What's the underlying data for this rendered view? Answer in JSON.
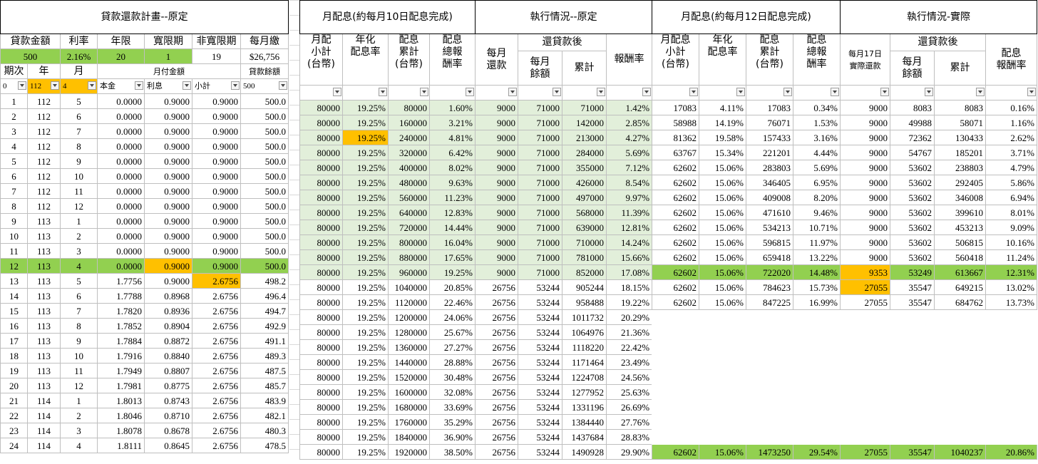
{
  "colors": {
    "green": "#92d050",
    "light_green": "#e2efda",
    "orange": "#ffc000"
  },
  "plan": {
    "title": "貸款還款計畫--原定",
    "param_headers": [
      "貸款金額",
      "利率",
      "年限",
      "寬限期",
      "非寬限期",
      "每月繳"
    ],
    "param_values": [
      "500",
      "2.16%",
      "20",
      "1",
      "19",
      "$26,756"
    ],
    "col_headers": {
      "period": "期次",
      "year": "年",
      "month": "月",
      "monthly_pay": "月付金額",
      "balance": "貸款餘額"
    },
    "filter_row": [
      "0",
      "112",
      "4",
      "本金",
      "利息",
      "小計",
      "500"
    ],
    "rows": [
      [
        "1",
        "112",
        "5",
        "0.0000",
        "0.9000",
        "0.9000",
        "500.0"
      ],
      [
        "2",
        "112",
        "6",
        "0.0000",
        "0.9000",
        "0.9000",
        "500.0"
      ],
      [
        "3",
        "112",
        "7",
        "0.0000",
        "0.9000",
        "0.9000",
        "500.0"
      ],
      [
        "4",
        "112",
        "8",
        "0.0000",
        "0.9000",
        "0.9000",
        "500.0"
      ],
      [
        "5",
        "112",
        "9",
        "0.0000",
        "0.9000",
        "0.9000",
        "500.0"
      ],
      [
        "6",
        "112",
        "10",
        "0.0000",
        "0.9000",
        "0.9000",
        "500.0"
      ],
      [
        "7",
        "112",
        "11",
        "0.0000",
        "0.9000",
        "0.9000",
        "500.0"
      ],
      [
        "8",
        "112",
        "12",
        "0.0000",
        "0.9000",
        "0.9000",
        "500.0"
      ],
      [
        "9",
        "113",
        "1",
        "0.0000",
        "0.9000",
        "0.9000",
        "500.0"
      ],
      [
        "10",
        "113",
        "2",
        "0.0000",
        "0.9000",
        "0.9000",
        "500.0"
      ],
      [
        "11",
        "113",
        "3",
        "0.0000",
        "0.9000",
        "0.9000",
        "500.0"
      ],
      [
        "12",
        "113",
        "4",
        "0.0000",
        "0.9000",
        "0.9000",
        "500.0"
      ],
      [
        "13",
        "113",
        "5",
        "1.7756",
        "0.9000",
        "2.6756",
        "498.2"
      ],
      [
        "14",
        "113",
        "6",
        "1.7788",
        "0.8968",
        "2.6756",
        "496.4"
      ],
      [
        "15",
        "113",
        "7",
        "1.7820",
        "0.8936",
        "2.6756",
        "494.7"
      ],
      [
        "16",
        "113",
        "8",
        "1.7852",
        "0.8904",
        "2.6756",
        "492.9"
      ],
      [
        "17",
        "113",
        "9",
        "1.7884",
        "0.8872",
        "2.6756",
        "491.1"
      ],
      [
        "18",
        "113",
        "10",
        "1.7916",
        "0.8840",
        "2.6756",
        "489.3"
      ],
      [
        "19",
        "113",
        "11",
        "1.7949",
        "0.8807",
        "2.6756",
        "487.5"
      ],
      [
        "20",
        "113",
        "12",
        "1.7981",
        "0.8775",
        "2.6756",
        "485.7"
      ],
      [
        "21",
        "114",
        "1",
        "1.8013",
        "0.8743",
        "2.6756",
        "483.9"
      ],
      [
        "22",
        "114",
        "2",
        "1.8046",
        "0.8710",
        "2.6756",
        "482.1"
      ],
      [
        "23",
        "114",
        "3",
        "1.8078",
        "0.8678",
        "2.6756",
        "480.3"
      ],
      [
        "24",
        "114",
        "4",
        "1.8111",
        "0.8645",
        "2.6756",
        "478.5"
      ]
    ]
  },
  "dividend_plan": {
    "title": "月配息(約每月10日配息完成)",
    "headers": [
      "月配\n小計\n(台幣)",
      "年化\n配息率",
      "配息\n累計\n(台幣)",
      "配息\n總報\n酬率"
    ],
    "rows": [
      [
        "80000",
        "19.25%",
        "80000",
        "1.60%"
      ],
      [
        "80000",
        "19.25%",
        "160000",
        "3.21%"
      ],
      [
        "80000",
        "19.25%",
        "240000",
        "4.81%"
      ],
      [
        "80000",
        "19.25%",
        "320000",
        "6.42%"
      ],
      [
        "80000",
        "19.25%",
        "400000",
        "8.02%"
      ],
      [
        "80000",
        "19.25%",
        "480000",
        "9.63%"
      ],
      [
        "80000",
        "19.25%",
        "560000",
        "11.23%"
      ],
      [
        "80000",
        "19.25%",
        "640000",
        "12.83%"
      ],
      [
        "80000",
        "19.25%",
        "720000",
        "14.44%"
      ],
      [
        "80000",
        "19.25%",
        "800000",
        "16.04%"
      ],
      [
        "80000",
        "19.25%",
        "880000",
        "17.65%"
      ],
      [
        "80000",
        "19.25%",
        "960000",
        "19.25%"
      ],
      [
        "80000",
        "19.25%",
        "1040000",
        "20.85%"
      ],
      [
        "80000",
        "19.25%",
        "1120000",
        "22.46%"
      ],
      [
        "80000",
        "19.25%",
        "1200000",
        "24.06%"
      ],
      [
        "80000",
        "19.25%",
        "1280000",
        "25.67%"
      ],
      [
        "80000",
        "19.25%",
        "1360000",
        "27.27%"
      ],
      [
        "80000",
        "19.25%",
        "1440000",
        "28.88%"
      ],
      [
        "80000",
        "19.25%",
        "1520000",
        "30.48%"
      ],
      [
        "80000",
        "19.25%",
        "1600000",
        "32.08%"
      ],
      [
        "80000",
        "19.25%",
        "1680000",
        "33.69%"
      ],
      [
        "80000",
        "19.25%",
        "1760000",
        "35.29%"
      ],
      [
        "80000",
        "19.25%",
        "1840000",
        "36.90%"
      ],
      [
        "80000",
        "19.25%",
        "1920000",
        "38.50%"
      ]
    ]
  },
  "exec_plan": {
    "title": "執行情況--原定",
    "headers": {
      "monthly": "每月\n還款",
      "after": "還貸款後",
      "remain": "每月\n餘額",
      "cum": "累計",
      "ret": "報酬率"
    },
    "rows": [
      [
        "9000",
        "71000",
        "71000",
        "1.42%"
      ],
      [
        "9000",
        "71000",
        "142000",
        "2.85%"
      ],
      [
        "9000",
        "71000",
        "213000",
        "4.27%"
      ],
      [
        "9000",
        "71000",
        "284000",
        "5.69%"
      ],
      [
        "9000",
        "71000",
        "355000",
        "7.12%"
      ],
      [
        "9000",
        "71000",
        "426000",
        "8.54%"
      ],
      [
        "9000",
        "71000",
        "497000",
        "9.97%"
      ],
      [
        "9000",
        "71000",
        "568000",
        "11.39%"
      ],
      [
        "9000",
        "71000",
        "639000",
        "12.81%"
      ],
      [
        "9000",
        "71000",
        "710000",
        "14.24%"
      ],
      [
        "9000",
        "71000",
        "781000",
        "15.66%"
      ],
      [
        "9000",
        "71000",
        "852000",
        "17.08%"
      ],
      [
        "26756",
        "53244",
        "905244",
        "18.15%"
      ],
      [
        "26756",
        "53244",
        "958488",
        "19.22%"
      ],
      [
        "26756",
        "53244",
        "1011732",
        "20.29%"
      ],
      [
        "26756",
        "53244",
        "1064976",
        "21.36%"
      ],
      [
        "26756",
        "53244",
        "1118220",
        "22.42%"
      ],
      [
        "26756",
        "53244",
        "1171464",
        "23.49%"
      ],
      [
        "26756",
        "53244",
        "1224708",
        "24.56%"
      ],
      [
        "26756",
        "53244",
        "1277952",
        "25.63%"
      ],
      [
        "26756",
        "53244",
        "1331196",
        "26.69%"
      ],
      [
        "26756",
        "53244",
        "1384440",
        "27.76%"
      ],
      [
        "26756",
        "53244",
        "1437684",
        "28.83%"
      ],
      [
        "26756",
        "53244",
        "1490928",
        "29.90%"
      ]
    ]
  },
  "dividend_actual": {
    "title": "月配息(約每月12日配息完成)",
    "headers": [
      "月配息\n小計\n(台幣)",
      "年化\n配息率",
      "配息\n累計\n(台幣)",
      "配息\n總報\n酬率"
    ],
    "rows": [
      [
        "17083",
        "4.11%",
        "17083",
        "0.34%"
      ],
      [
        "58988",
        "14.19%",
        "76071",
        "1.53%"
      ],
      [
        "81362",
        "19.58%",
        "157433",
        "3.16%"
      ],
      [
        "63767",
        "15.34%",
        "221201",
        "4.44%"
      ],
      [
        "62602",
        "15.06%",
        "283803",
        "5.69%"
      ],
      [
        "62602",
        "15.06%",
        "346405",
        "6.95%"
      ],
      [
        "62602",
        "15.06%",
        "409008",
        "8.20%"
      ],
      [
        "62602",
        "15.06%",
        "471610",
        "9.46%"
      ],
      [
        "62602",
        "15.06%",
        "534213",
        "10.71%"
      ],
      [
        "62602",
        "15.06%",
        "596815",
        "11.97%"
      ],
      [
        "62602",
        "15.06%",
        "659418",
        "13.22%"
      ],
      [
        "62602",
        "15.06%",
        "722020",
        "14.48%"
      ],
      [
        "62602",
        "15.06%",
        "784623",
        "15.73%"
      ],
      [
        "62602",
        "15.06%",
        "847225",
        "16.99%"
      ]
    ],
    "total": [
      "62602",
      "15.06%",
      "1473250",
      "29.54%"
    ]
  },
  "exec_actual": {
    "title": "執行情況-實際",
    "headers": {
      "monthly": "每月17日\n實際還款",
      "after": "還貸款後",
      "remain": "每月\n餘額",
      "cum": "累計",
      "ret": "配息\n報酬率"
    },
    "rows": [
      [
        "9000",
        "8083",
        "8083",
        "0.16%"
      ],
      [
        "9000",
        "49988",
        "58071",
        "1.16%"
      ],
      [
        "9000",
        "72362",
        "130433",
        "2.62%"
      ],
      [
        "9000",
        "54767",
        "185201",
        "3.71%"
      ],
      [
        "9000",
        "53602",
        "238803",
        "4.79%"
      ],
      [
        "9000",
        "53602",
        "292405",
        "5.86%"
      ],
      [
        "9000",
        "53602",
        "346008",
        "6.94%"
      ],
      [
        "9000",
        "53602",
        "399610",
        "8.01%"
      ],
      [
        "9000",
        "53602",
        "453213",
        "9.09%"
      ],
      [
        "9000",
        "53602",
        "506815",
        "10.16%"
      ],
      [
        "9000",
        "53602",
        "560418",
        "11.24%"
      ],
      [
        "9353",
        "53249",
        "613667",
        "12.31%"
      ],
      [
        "27055",
        "35547",
        "649215",
        "13.02%"
      ],
      [
        "27055",
        "35547",
        "684762",
        "13.73%"
      ]
    ],
    "total": [
      "27055",
      "35547",
      "1040237",
      "20.86%"
    ]
  }
}
